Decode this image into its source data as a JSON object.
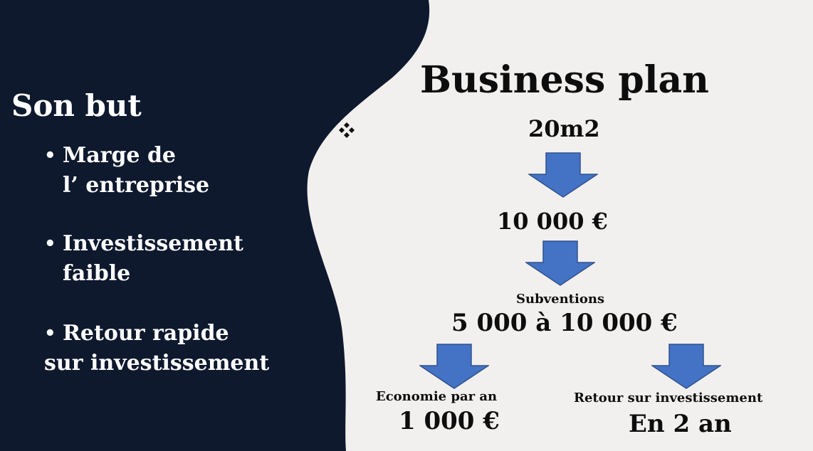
{
  "slide": {
    "colors": {
      "panel": "#0e192e",
      "background": "#f2f0ee",
      "arrow_fill": "#4472c4",
      "arrow_stroke": "#2f528f",
      "text_dark": "#0d0d0d",
      "text_light": "#ffffff"
    },
    "left_panel": {
      "title": "Son but",
      "bullet_glyph": "•",
      "bullets": [
        {
          "line1": "Marge de",
          "line2": "l’ entreprise"
        },
        {
          "line1": "Investissement",
          "line2": "faible"
        },
        {
          "line1": "Retour rapide",
          "line2": "sur investissement"
        }
      ]
    },
    "right_panel": {
      "title": "Business plan",
      "icon": "four-diamonds-icon",
      "surface": "20m2",
      "cost": "10 000 €",
      "subsidies_label": "Subventions",
      "subsidies_range": "5 000 à 10 000 €",
      "savings_label": "Economie par an",
      "savings_value": "1 000 €",
      "roi_label": "Retour sur investissement",
      "roi_value": "En 2 an"
    }
  }
}
